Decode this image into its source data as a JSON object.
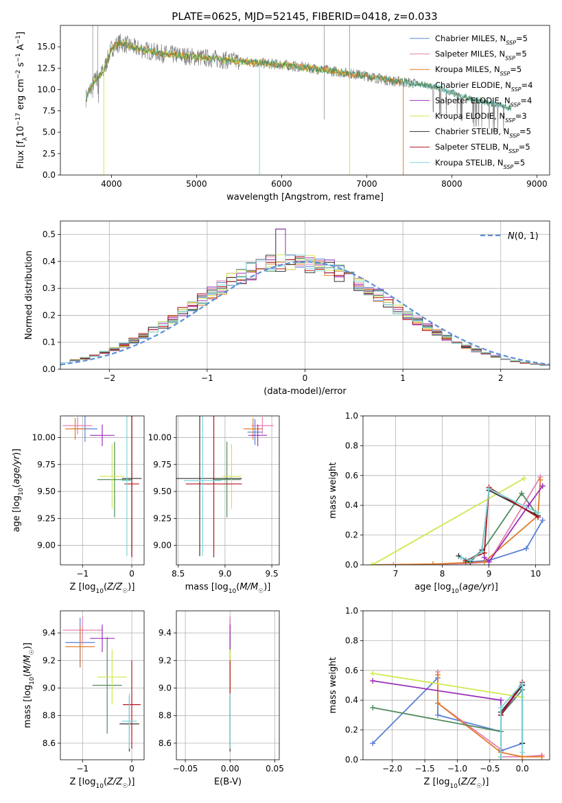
{
  "figure": {
    "title": "PLATE=0625, MJD=52145, FIBERID=0418, z=0.033"
  },
  "chart_data": [
    {
      "id": "spectrum",
      "type": "line",
      "title": "PLATE=0625, MJD=52145, FIBERID=0418, z=0.033",
      "xlabel": "wavelength [Angstrom, rest frame]",
      "ylabel": "Flux [f_λ 10^-17 erg cm^-2 s^-1 A^-1]",
      "xlim": [
        3400,
        9150
      ],
      "ylim": [
        0,
        17.5
      ],
      "xticks": [
        4000,
        5000,
        6000,
        7000,
        8000,
        9000
      ],
      "yticks": [
        0.0,
        2.5,
        5.0,
        7.5,
        10.0,
        12.5,
        15.0
      ],
      "ytick_labels": [
        "0.0",
        "2.5",
        "5.0",
        "7.5",
        "10.0",
        "12.5",
        "15.0"
      ],
      "legend_position": "top-right",
      "legend": [
        {
          "label": "Chabrier MILES, N",
          "sub": "SSP",
          "suffix": "=5",
          "color": "#5a7fd6"
        },
        {
          "label": "Salpeter MILES, N",
          "sub": "SSP",
          "suffix": "=5",
          "color": "#e67fb0"
        },
        {
          "label": "Kroupa MILES, N",
          "sub": "SSP",
          "suffix": "=5",
          "color": "#e07b26"
        },
        {
          "label": "Chabrier ELODIE, N",
          "sub": "SSP",
          "suffix": "=4",
          "color": "#4f8a5c"
        },
        {
          "label": "Salpeter ELODIE, N",
          "sub": "SSP",
          "suffix": "=4",
          "color": "#9b2fb8"
        },
        {
          "label": "Kroupa ELODIE, N",
          "sub": "SSP",
          "suffix": "=3",
          "color": "#cfe84a"
        },
        {
          "label": "Chabrier STELIB, N",
          "sub": "SSP",
          "suffix": "=5",
          "color": "#333333"
        },
        {
          "label": "Salpeter STELIB, N",
          "sub": "SSP",
          "suffix": "=5",
          "color": "#b0141c"
        },
        {
          "label": "Kroupa STELIB, N",
          "sub": "SSP",
          "suffix": "=5",
          "color": "#7fd6da"
        }
      ],
      "data_color": "#808080",
      "data_x_range": [
        3700,
        8700
      ],
      "continuum": {
        "x": [
          3700,
          3800,
          3900,
          4000,
          4100,
          4300,
          4600,
          5000,
          5500,
          6000,
          6500,
          7000,
          7300,
          7500,
          7800,
          8200,
          8700
        ],
        "y": [
          9.0,
          11.0,
          12.0,
          14.8,
          15.5,
          14.8,
          14.2,
          13.8,
          13.3,
          12.9,
          12.3,
          11.6,
          11.0,
          10.8,
          10.3,
          9.0,
          7.8
        ]
      }
    },
    {
      "id": "residuals",
      "type": "histogram",
      "xlabel": "(data-model)/error",
      "ylabel": "Normed distribution",
      "xlim": [
        -2.5,
        2.5
      ],
      "ylim": [
        0,
        0.55
      ],
      "xticks": [
        -2,
        -1,
        0,
        1,
        2
      ],
      "xtick_labels": [
        "−2",
        "−1",
        "0",
        "1",
        "2"
      ],
      "yticks": [
        0.0,
        0.1,
        0.2,
        0.3,
        0.4,
        0.5
      ],
      "ytick_labels": [
        "0.0",
        "0.1",
        "0.2",
        "0.3",
        "0.4",
        "0.5"
      ],
      "grid": true,
      "legend_position": "top-right",
      "legend": [
        {
          "label": "N(0, 1)",
          "color": "#5a8fd6",
          "style": "dashed"
        }
      ],
      "bin_width": 0.1,
      "bin_range": [
        -2.5,
        2.5
      ]
    },
    {
      "id": "age-vs-Z",
      "type": "scatter",
      "xlabel": "Z [log10(Z/Z☉)]",
      "ylabel": "age  [log10(age/yr)]",
      "xlim": [
        -1.45,
        0.25
      ],
      "ylim": [
        8.82,
        10.2
      ],
      "xticks": [
        -1,
        0
      ],
      "xtick_labels": [
        "−1",
        "0"
      ],
      "yticks": [
        9.0,
        9.25,
        9.5,
        9.75,
        10.0
      ],
      "ytick_labels": [
        "9.00",
        "9.25",
        "9.50",
        "9.75",
        "10.00"
      ],
      "grid": true,
      "points": [
        {
          "series": "Chabrier MILES",
          "x": -0.95,
          "y": 10.08,
          "xerr": 0.25,
          "yerr": 0.12
        },
        {
          "series": "Salpeter MILES",
          "x": -1.1,
          "y": 10.11,
          "xerr": 0.3,
          "yerr": 0.08
        },
        {
          "series": "Kroupa MILES",
          "x": -1.15,
          "y": 10.08,
          "xerr": 0.2,
          "yerr": 0.1
        },
        {
          "series": "Chabrier ELODIE",
          "x": -0.35,
          "y": 9.61,
          "xerr": 0.35,
          "yerr": 0.35
        },
        {
          "series": "Salpeter ELODIE",
          "x": -0.6,
          "y": 10.02,
          "xerr": 0.25,
          "yerr": 0.1
        },
        {
          "series": "Kroupa ELODIE",
          "x": -0.4,
          "y": 9.64,
          "xerr": 0.25,
          "yerr": 0.3
        },
        {
          "series": "Chabrier STELIB",
          "x": 0.0,
          "y": 9.62,
          "xerr": 0.2,
          "yerr": 0.72
        },
        {
          "series": "Salpeter STELIB",
          "x": 0.0,
          "y": 9.57,
          "xerr": 0.15,
          "yerr": 0.68
        },
        {
          "series": "Kroupa STELIB",
          "x": -0.1,
          "y": 9.6,
          "xerr": 0.1,
          "yerr": 0.7
        }
      ]
    },
    {
      "id": "age-vs-mass",
      "type": "scatter",
      "xlabel": "mass [log10(M/M☉)]",
      "ylabel": "",
      "xlim": [
        8.48,
        9.58
      ],
      "ylim": [
        8.82,
        10.2
      ],
      "xticks": [
        8.5,
        9.0,
        9.5
      ],
      "xtick_labels": [
        "8.5",
        "9.0",
        "9.5"
      ],
      "yticks": [
        9.0,
        9.25,
        9.5,
        9.75,
        10.0
      ],
      "ytick_labels": [
        "9.00",
        "9.25",
        "9.50",
        "9.75",
        "10.00"
      ],
      "grid": true,
      "points": [
        {
          "series": "Chabrier MILES",
          "x": 9.32,
          "y": 10.05,
          "xerr": 0.08,
          "yerr": 0.12
        },
        {
          "series": "Salpeter MILES",
          "x": 9.4,
          "y": 10.11,
          "xerr": 0.12,
          "yerr": 0.08
        },
        {
          "series": "Kroupa MILES",
          "x": 9.3,
          "y": 10.08,
          "xerr": 0.1,
          "yerr": 0.1
        },
        {
          "series": "Chabrier ELODIE",
          "x": 9.02,
          "y": 9.61,
          "xerr": 0.15,
          "yerr": 0.35
        },
        {
          "series": "Salpeter ELODIE",
          "x": 9.35,
          "y": 10.02,
          "xerr": 0.1,
          "yerr": 0.1
        },
        {
          "series": "Kroupa ELODIE",
          "x": 9.07,
          "y": 9.64,
          "xerr": 0.1,
          "yerr": 0.3
        },
        {
          "series": "Chabrier STELIB",
          "x": 8.73,
          "y": 9.62,
          "xerr": 0.45,
          "yerr": 0.72
        },
        {
          "series": "Salpeter STELIB",
          "x": 8.88,
          "y": 9.57,
          "xerr": 0.3,
          "yerr": 0.68
        },
        {
          "series": "Kroupa STELIB",
          "x": 8.76,
          "y": 9.6,
          "xerr": 0.2,
          "yerr": 0.7
        }
      ]
    },
    {
      "id": "weight-vs-age",
      "type": "line",
      "xlabel": "age  [log10(age/yr)]",
      "ylabel": "mass weight",
      "xlim": [
        6.3,
        10.3
      ],
      "ylim": [
        0,
        1.0
      ],
      "xticks": [
        7,
        8,
        9,
        10
      ],
      "xtick_labels": [
        "7",
        "8",
        "9",
        "10"
      ],
      "yticks": [
        0.0,
        0.2,
        0.4,
        0.6,
        0.8,
        1.0
      ],
      "ytick_labels": [
        "0.0",
        "0.2",
        "0.4",
        "0.6",
        "0.8",
        "1.0"
      ],
      "grid": true,
      "series": [
        {
          "name": "Chabrier MILES",
          "x": [
            8.4,
            8.6,
            9.0,
            9.8,
            10.15
          ],
          "y": [
            0.05,
            0.02,
            0.03,
            0.11,
            0.3
          ]
        },
        {
          "name": "Salpeter MILES",
          "x": [
            6.95,
            8.6,
            9.0,
            10.1
          ],
          "y": [
            0.0,
            0.01,
            0.02,
            0.59
          ]
        },
        {
          "name": "Kroupa MILES",
          "x": [
            6.5,
            7.8,
            8.9,
            10.05,
            10.1
          ],
          "y": [
            0.0,
            0.005,
            0.02,
            0.33,
            0.57
          ]
        },
        {
          "name": "Chabrier ELODIE",
          "x": [
            8.5,
            8.85,
            9.7,
            10.0
          ],
          "y": [
            0.02,
            0.09,
            0.48,
            0.35
          ]
        },
        {
          "name": "Salpeter ELODIE",
          "x": [
            8.9,
            9.0,
            9.85,
            10.15
          ],
          "y": [
            0.05,
            0.02,
            0.4,
            0.53
          ]
        },
        {
          "name": "Kroupa ELODIE",
          "x": [
            6.5,
            9.75
          ],
          "y": [
            0.0,
            0.58
          ]
        },
        {
          "name": "Chabrier STELIB",
          "x": [
            8.35,
            8.6,
            8.85,
            9.0,
            10.05
          ],
          "y": [
            0.06,
            0.02,
            0.1,
            0.5,
            0.33
          ]
        },
        {
          "name": "Salpeter STELIB",
          "x": [
            8.5,
            8.9,
            9.0,
            10.05
          ],
          "y": [
            0.03,
            0.08,
            0.52,
            0.32
          ]
        },
        {
          "name": "Kroupa STELIB",
          "x": [
            8.4,
            8.6,
            8.85,
            9.0,
            10.05
          ],
          "y": [
            0.05,
            0.03,
            0.09,
            0.51,
            0.35
          ]
        }
      ]
    },
    {
      "id": "mass-vs-Z",
      "type": "scatter",
      "xlabel": "Z [log10(Z/Z☉)]",
      "ylabel": "mass [log10(M/M☉)]",
      "xlim": [
        -1.45,
        0.25
      ],
      "ylim": [
        8.48,
        9.56
      ],
      "xticks": [
        -1,
        0
      ],
      "xtick_labels": [
        "−1",
        "0"
      ],
      "yticks": [
        8.6,
        8.8,
        9.0,
        9.2,
        9.4
      ],
      "ytick_labels": [
        "8.6",
        "8.8",
        "9.0",
        "9.2",
        "9.4"
      ],
      "grid": true,
      "points": [
        {
          "series": "Chabrier MILES",
          "x": -1.05,
          "y": 9.33,
          "xerr": 0.3,
          "yerr": 0.18
        },
        {
          "series": "Salpeter MILES",
          "x": -1.0,
          "y": 9.42,
          "xerr": 0.4,
          "yerr": 0.1
        },
        {
          "series": "Kroupa MILES",
          "x": -1.05,
          "y": 9.3,
          "xerr": 0.3,
          "yerr": 0.15
        },
        {
          "series": "Chabrier ELODIE",
          "x": -0.5,
          "y": 9.02,
          "xerr": 0.3,
          "yerr": 0.35
        },
        {
          "series": "Salpeter ELODIE",
          "x": -0.6,
          "y": 9.36,
          "xerr": 0.25,
          "yerr": 0.1
        },
        {
          "series": "Kroupa ELODIE",
          "x": -0.4,
          "y": 9.08,
          "xerr": 0.3,
          "yerr": 0.2
        },
        {
          "series": "Chabrier STELIB",
          "x": -0.05,
          "y": 8.74,
          "xerr": 0.2,
          "yerr": 0.2
        },
        {
          "series": "Salpeter STELIB",
          "x": 0.0,
          "y": 8.88,
          "xerr": 0.18,
          "yerr": 0.32
        },
        {
          "series": "Kroupa STELIB",
          "x": -0.05,
          "y": 8.76,
          "xerr": 0.15,
          "yerr": 0.2
        }
      ]
    },
    {
      "id": "mass-vs-ebv",
      "type": "scatter",
      "xlabel": "E(B-V)",
      "ylabel": "",
      "xlim": [
        -0.06,
        0.055
      ],
      "ylim": [
        8.48,
        9.56
      ],
      "xticks": [
        -0.05,
        0.0,
        0.05
      ],
      "xtick_labels": [
        "−0.05",
        "0.00",
        "0.05"
      ],
      "yticks": [
        8.6,
        8.8,
        9.0,
        9.2,
        9.4
      ],
      "ytick_labels": [
        "8.6",
        "8.8",
        "9.0",
        "9.2",
        "9.4"
      ],
      "grid": true,
      "points": [
        {
          "series": "Chabrier MILES",
          "x": 0.0,
          "y": 9.33,
          "xerr": 0,
          "yerr": 0.18
        },
        {
          "series": "Salpeter MILES",
          "x": 0.0,
          "y": 9.42,
          "xerr": 0,
          "yerr": 0.1
        },
        {
          "series": "Kroupa MILES",
          "x": 0.0,
          "y": 9.3,
          "xerr": 0,
          "yerr": 0.15
        },
        {
          "series": "Chabrier ELODIE",
          "x": 0.0,
          "y": 9.02,
          "xerr": 0,
          "yerr": 0.35
        },
        {
          "series": "Salpeter ELODIE",
          "x": 0.0,
          "y": 9.36,
          "xerr": 0,
          "yerr": 0.1
        },
        {
          "series": "Kroupa ELODIE",
          "x": 0.0,
          "y": 9.08,
          "xerr": 0,
          "yerr": 0.2
        },
        {
          "series": "Chabrier STELIB",
          "x": 0.0,
          "y": 8.74,
          "xerr": 0,
          "yerr": 0.2
        },
        {
          "series": "Salpeter STELIB",
          "x": 0.0,
          "y": 8.88,
          "xerr": 0,
          "yerr": 0.32
        },
        {
          "series": "Kroupa STELIB",
          "x": 0.0,
          "y": 8.76,
          "xerr": 0,
          "yerr": 0.2
        }
      ]
    },
    {
      "id": "weight-vs-Z",
      "type": "line",
      "xlabel": "Z [log10(Z/Z☉)]",
      "ylabel": "mass weight",
      "xlim": [
        -2.45,
        0.42
      ],
      "ylim": [
        0,
        1.0
      ],
      "xticks": [
        -2.0,
        -1.5,
        -1.0,
        -0.5,
        0.0
      ],
      "xtick_labels": [
        "−2.0",
        "−1.5",
        "−1.0",
        "−0.5",
        "0.0"
      ],
      "yticks": [
        0.0,
        0.2,
        0.4,
        0.6,
        0.8,
        1.0
      ],
      "ytick_labels": [
        "0.0",
        "0.2",
        "0.4",
        "0.6",
        "0.8",
        "1.0"
      ],
      "grid": true,
      "series": [
        {
          "name": "Chabrier MILES",
          "x": [
            -2.3,
            -1.3,
            -1.3,
            -0.33,
            -0.33,
            0.0,
            0.0
          ],
          "y": [
            0.11,
            0.55,
            0.3,
            0.19,
            0.06,
            0.11,
            0.02
          ]
        },
        {
          "name": "Salpeter MILES",
          "x": [
            -1.3,
            -1.3,
            -0.33,
            -0.33,
            0.0,
            0.3
          ],
          "y": [
            0.59,
            0.38,
            0.07,
            0.02,
            0.02,
            0.03
          ]
        },
        {
          "name": "Kroupa MILES",
          "x": [
            -1.3,
            -1.3,
            -0.33,
            0.0,
            0.3
          ],
          "y": [
            0.57,
            0.38,
            0.05,
            0.02,
            0.02
          ]
        },
        {
          "name": "Chabrier ELODIE",
          "x": [
            -2.3,
            -0.33,
            -0.33,
            0.0,
            0.0
          ],
          "y": [
            0.35,
            0.19,
            0.3,
            0.47,
            0.11
          ]
        },
        {
          "name": "Salpeter ELODIE",
          "x": [
            -2.3,
            -0.33,
            -0.33,
            0.0
          ],
          "y": [
            0.53,
            0.4,
            0.3,
            0.5
          ]
        },
        {
          "name": "Kroupa ELODIE",
          "x": [
            -2.3,
            0.0
          ],
          "y": [
            0.58,
            0.42
          ]
        },
        {
          "name": "Chabrier STELIB",
          "x": [
            -0.33,
            -0.33,
            0.0,
            0.0
          ],
          "y": [
            0.02,
            0.32,
            0.5,
            0.11
          ]
        },
        {
          "name": "Salpeter STELIB",
          "x": [
            -0.33,
            -0.33,
            0.0
          ],
          "y": [
            0.02,
            0.3,
            0.52
          ]
        },
        {
          "name": "Kroupa STELIB",
          "x": [
            -0.33,
            -0.33,
            0.0,
            0.0
          ],
          "y": [
            0.02,
            0.35,
            0.51,
            0.05
          ]
        }
      ]
    }
  ]
}
